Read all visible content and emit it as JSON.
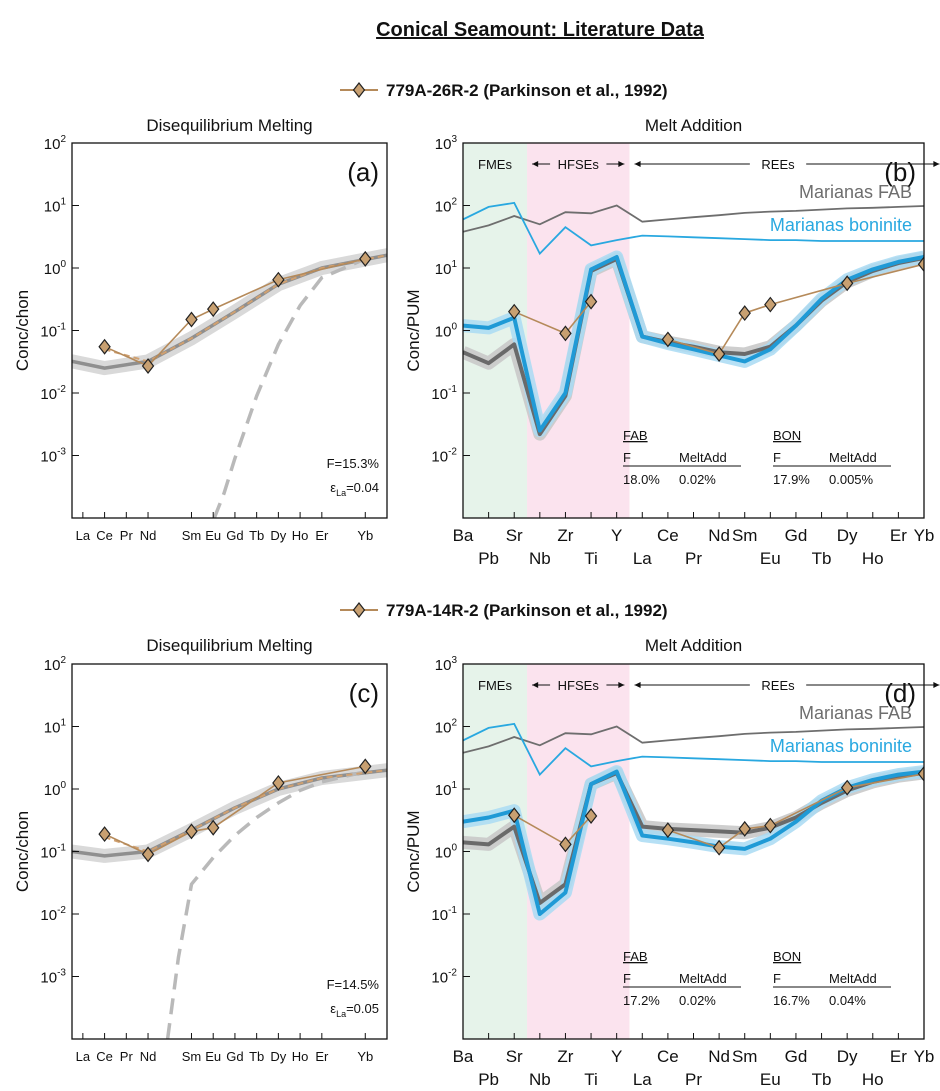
{
  "figure": {
    "title": "Conical Seamount: Literature Data",
    "rows": [
      {
        "legend": "779A-26R-2 (Parkinson et al., 1992)"
      },
      {
        "legend": "779A-14R-2 (Parkinson et al., 1992)"
      }
    ]
  },
  "colors": {
    "sample": "#c8a071",
    "sample_line": "#b58a5a",
    "fab": "#6e6e6e",
    "boninite": "#29a8e0",
    "model_gray": "#8f8f8f",
    "fme_bg": "#e6f3ea",
    "hfse_bg": "#fbe3ee"
  },
  "chart_data": [
    {
      "id": "a",
      "type": "line",
      "label": "(a)",
      "title": "Disequilibrium Melting",
      "ylabel": "Conc/chon",
      "yscale": "log",
      "ylim": [
        0.0001,
        100
      ],
      "yticks": [
        "10^-3",
        "10^-2",
        "10^-1",
        "10^0",
        "10^1",
        "10^2"
      ],
      "xlim": [
        56.5,
        71
      ],
      "xticks": [
        {
          "z": 57,
          "l": "La"
        },
        {
          "z": 58,
          "l": "Ce"
        },
        {
          "z": 59,
          "l": "Pr"
        },
        {
          "z": 60,
          "l": "Nd"
        },
        {
          "z": 62,
          "l": "Sm"
        },
        {
          "z": 63,
          "l": "Eu"
        },
        {
          "z": 64,
          "l": "Gd"
        },
        {
          "z": 65,
          "l": "Tb"
        },
        {
          "z": 66,
          "l": "Dy"
        },
        {
          "z": 67,
          "l": "Ho"
        },
        {
          "z": 68,
          "l": "Er"
        },
        {
          "z": 70,
          "l": "Yb"
        }
      ],
      "model": {
        "x": [
          56.5,
          58,
          60,
          62,
          64,
          66,
          68,
          71
        ],
        "y": [
          0.032,
          0.025,
          0.032,
          0.075,
          0.2,
          0.55,
          1.0,
          1.6
        ]
      },
      "residue": {
        "x": [
          63.05,
          63.5,
          64,
          65,
          66,
          67,
          68,
          70
        ],
        "y": [
          0.0001,
          0.00025,
          0.0009,
          0.009,
          0.06,
          0.25,
          0.7,
          1.4
        ]
      },
      "sample": {
        "x": [
          58,
          60,
          62,
          63,
          66,
          70
        ],
        "y": [
          0.055,
          0.027,
          0.15,
          0.22,
          0.65,
          1.4
        ]
      },
      "annotations": [
        "F=15.3%",
        "ε_La=0.04"
      ]
    },
    {
      "id": "b",
      "type": "line",
      "label": "(b)",
      "title": "Melt Addition",
      "ylabel": "Conc/PUM",
      "yscale": "log",
      "ylim": [
        0.001,
        1000
      ],
      "yticks": [
        "10^-2",
        "10^-1",
        "10^0",
        "10^1",
        "10^2",
        "10^3"
      ],
      "categories": [
        "Ba",
        "Pb",
        "Sr",
        "Nb",
        "Zr",
        "Ti",
        "Y",
        "La",
        "Ce",
        "Pr",
        "Nd",
        "Sm",
        "Eu",
        "Gd",
        "Tb",
        "Dy",
        "Ho",
        "Er",
        "Yb"
      ],
      "group_labels": [
        "FMEs",
        "HFSEs",
        "REEs"
      ],
      "fab": {
        "name": "Marianas FAB",
        "values": [
          38,
          48,
          68,
          50,
          78,
          75,
          100,
          55,
          60,
          65,
          70,
          76,
          80,
          82,
          86,
          90,
          92,
          95,
          98
        ]
      },
      "boninite": {
        "name": "Marianas boninite",
        "values": [
          60,
          95,
          110,
          17,
          45,
          23,
          28,
          33,
          32,
          31,
          30,
          29,
          28,
          28,
          27,
          27,
          27,
          27,
          27
        ]
      },
      "model_fab": [
        0.45,
        0.3,
        0.6,
        0.022,
        0.09,
        9.0,
        14.0,
        0.8,
        0.65,
        0.55,
        0.45,
        0.42,
        0.55,
        1.2,
        3.0,
        6.0,
        9.0,
        12.0,
        14.5
      ],
      "model_bon": [
        1.2,
        1.1,
        1.6,
        0.025,
        0.1,
        9.5,
        15.0,
        0.8,
        0.62,
        0.5,
        0.4,
        0.32,
        0.5,
        1.2,
        3.2,
        6.5,
        9.5,
        12.5,
        15.0
      ],
      "sample": {
        "x": [
          2,
          4,
          5,
          8,
          10,
          11,
          12,
          15,
          18
        ],
        "y": [
          2.0,
          0.9,
          2.9,
          0.72,
          0.42,
          1.9,
          2.6,
          5.7,
          11.5
        ]
      },
      "inset": {
        "fab_head": "FAB",
        "bon_head": "BON",
        "col_f": "F",
        "col_melt": "MeltAdd",
        "fab_f": "18.0%",
        "fab_melt": "0.02%",
        "bon_f": "17.9%",
        "bon_melt": "0.005%"
      }
    },
    {
      "id": "c",
      "type": "line",
      "label": "(c)",
      "title": "Disequilibrium Melting",
      "ylabel": "Conc/chon",
      "yscale": "log",
      "ylim": [
        0.0001,
        100
      ],
      "yticks": [
        "10^-3",
        "10^-2",
        "10^-1",
        "10^0",
        "10^1",
        "10^2"
      ],
      "xlim": [
        56.5,
        71
      ],
      "xticks": [
        {
          "z": 57,
          "l": "La"
        },
        {
          "z": 58,
          "l": "Ce"
        },
        {
          "z": 59,
          "l": "Pr"
        },
        {
          "z": 60,
          "l": "Nd"
        },
        {
          "z": 62,
          "l": "Sm"
        },
        {
          "z": 63,
          "l": "Eu"
        },
        {
          "z": 64,
          "l": "Gd"
        },
        {
          "z": 65,
          "l": "Tb"
        },
        {
          "z": 66,
          "l": "Dy"
        },
        {
          "z": 67,
          "l": "Ho"
        },
        {
          "z": 68,
          "l": "Er"
        },
        {
          "z": 70,
          "l": "Yb"
        }
      ],
      "model": {
        "x": [
          56.5,
          58,
          60,
          62,
          64,
          66,
          68,
          71
        ],
        "y": [
          0.1,
          0.085,
          0.1,
          0.22,
          0.5,
          1.0,
          1.5,
          2.0
        ]
      },
      "residue": {
        "x": [
          60.9,
          61.4,
          62,
          63,
          64,
          65,
          66,
          67,
          68,
          70
        ],
        "y": [
          0.0001,
          0.002,
          0.03,
          0.08,
          0.18,
          0.35,
          0.6,
          0.95,
          1.3,
          1.9
        ]
      },
      "sample": {
        "x": [
          58,
          60,
          62,
          63,
          66,
          70
        ],
        "y": [
          0.19,
          0.09,
          0.21,
          0.24,
          1.25,
          2.3
        ]
      },
      "annotations": [
        "F=14.5%",
        "ε_La=0.05"
      ]
    },
    {
      "id": "d",
      "type": "line",
      "label": "(d)",
      "title": "Melt Addition",
      "ylabel": "Conc/PUM",
      "yscale": "log",
      "ylim": [
        0.001,
        1000
      ],
      "yticks": [
        "10^-2",
        "10^-1",
        "10^0",
        "10^1",
        "10^2",
        "10^3"
      ],
      "categories": [
        "Ba",
        "Pb",
        "Sr",
        "Nb",
        "Zr",
        "Ti",
        "Y",
        "La",
        "Ce",
        "Pr",
        "Nd",
        "Sm",
        "Eu",
        "Gd",
        "Tb",
        "Dy",
        "Ho",
        "Er",
        "Yb"
      ],
      "group_labels": [
        "FMEs",
        "HFSEs",
        "REEs"
      ],
      "fab": {
        "name": "Marianas FAB",
        "values": [
          38,
          48,
          68,
          50,
          78,
          75,
          100,
          55,
          60,
          65,
          70,
          76,
          80,
          82,
          86,
          90,
          92,
          95,
          98
        ]
      },
      "boninite": {
        "name": "Marianas boninite",
        "values": [
          60,
          95,
          110,
          17,
          45,
          23,
          28,
          33,
          32,
          31,
          30,
          29,
          28,
          28,
          27,
          27,
          27,
          27,
          27
        ]
      },
      "model_fab": [
        1.4,
        1.3,
        2.5,
        0.15,
        0.3,
        12.0,
        18.0,
        2.5,
        2.3,
        2.2,
        2.1,
        2.0,
        2.4,
        3.5,
        6.0,
        9.5,
        13.0,
        16.0,
        18.0
      ],
      "model_bon": [
        3.0,
        3.5,
        4.5,
        0.1,
        0.22,
        12.0,
        19.0,
        1.8,
        1.6,
        1.4,
        1.2,
        1.1,
        1.6,
        3.0,
        6.5,
        10.5,
        14.0,
        17.0,
        19.0
      ],
      "sample": {
        "x": [
          2,
          4,
          5,
          8,
          10,
          11,
          12,
          15,
          18
        ],
        "y": [
          3.8,
          1.3,
          3.7,
          2.2,
          1.15,
          2.3,
          2.6,
          10.5,
          17.5
        ]
      },
      "inset": {
        "fab_head": "FAB",
        "bon_head": "BON",
        "col_f": "F",
        "col_melt": "MeltAdd",
        "fab_f": "17.2%",
        "fab_melt": "0.02%",
        "bon_f": "16.7%",
        "bon_melt": "0.04%"
      }
    }
  ]
}
